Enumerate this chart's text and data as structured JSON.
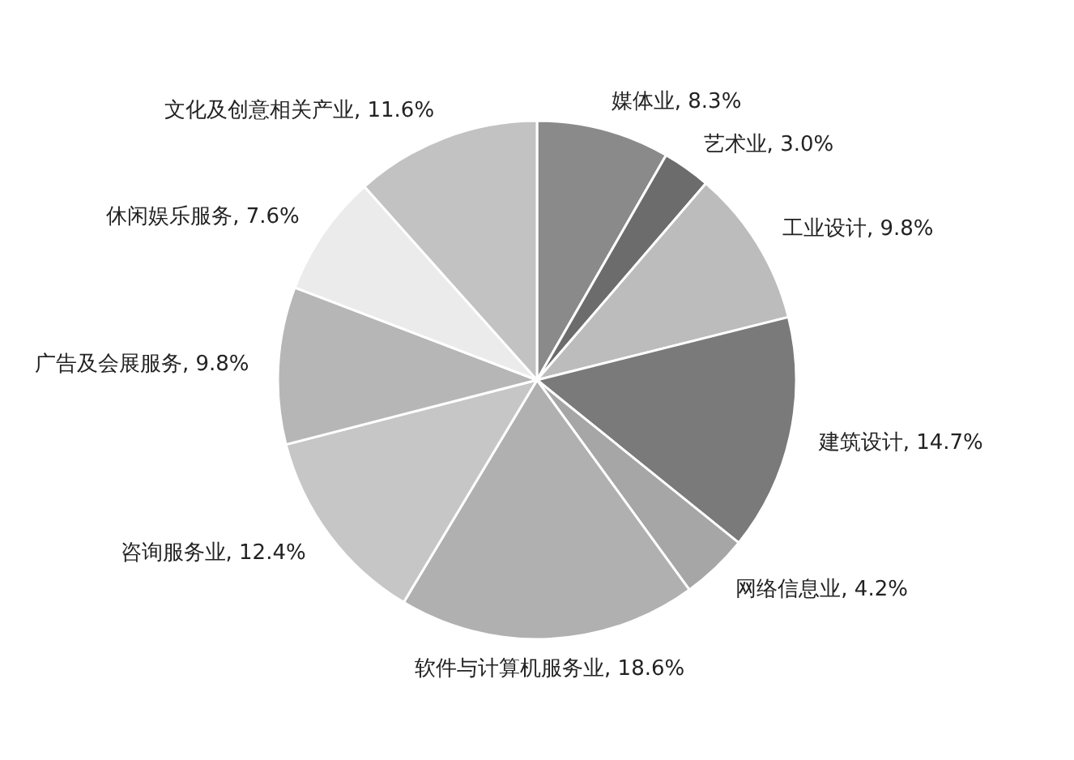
{
  "chart_data": {
    "type": "pie",
    "categories": [
      "媒体业",
      "艺术业",
      "工业设计",
      "建筑设计",
      "网络信息业",
      "软件与计算机服务业",
      "咨询服务业",
      "广告及会展服务",
      "休闲娱乐服务",
      "文化及创意相关产业"
    ],
    "values": [
      8.3,
      3.0,
      9.8,
      14.7,
      4.2,
      18.6,
      12.4,
      9.8,
      7.6,
      11.6
    ],
    "value_labels": [
      "8.3%",
      "3.0%",
      "9.8%",
      "14.7%",
      "4.2%",
      "18.6%",
      "12.4%",
      "9.8%",
      "7.6%",
      "11.6%"
    ],
    "colors": [
      "#8a8a8a",
      "#6c6c6c",
      "#bcbcbc",
      "#7a7a7a",
      "#a6a6a6",
      "#b0b0b0",
      "#c6c6c6",
      "#b6b6b6",
      "#ebebeb",
      "#c2c2c2"
    ]
  }
}
